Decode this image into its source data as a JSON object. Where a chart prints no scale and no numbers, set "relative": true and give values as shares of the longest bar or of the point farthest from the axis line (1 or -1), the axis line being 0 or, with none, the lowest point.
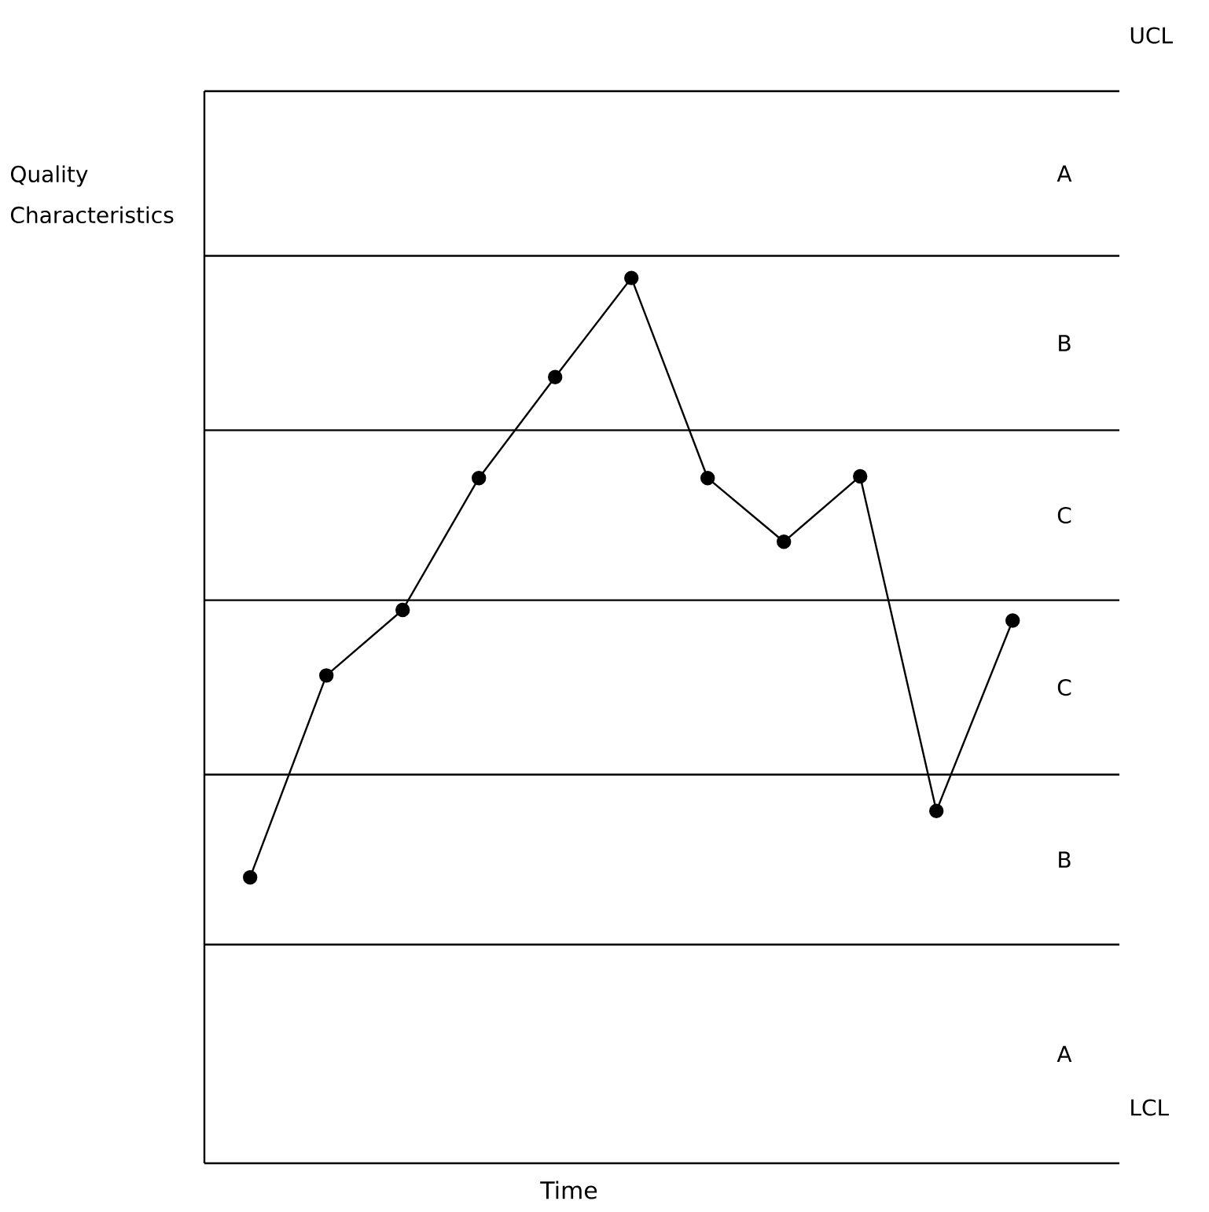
{
  "chart_data": {
    "type": "line",
    "relative": true,
    "xlabel": "Time",
    "ylabel": "Quality Characteristics",
    "categories": [
      null,
      null,
      null,
      null,
      null,
      null,
      null,
      null,
      null,
      null,
      null
    ],
    "series": [
      {
        "color": "#000000",
        "values": [
          0.323,
          0.551,
          0.625,
          0.774,
          0.888,
          1,
          0.774,
          0.702,
          0.776,
          0.398,
          0.613
        ]
      }
    ],
    "marker": "circle",
    "line_style": "solid",
    "ref_lines": [
      {
        "axis": "y",
        "value": 1.211,
        "label": "UCL"
      },
      {
        "axis": "y",
        "value": 1.025,
        "label": null
      },
      {
        "axis": "y",
        "value": 0.828,
        "label": null
      },
      {
        "axis": "y",
        "value": 0.636,
        "label": null
      },
      {
        "axis": "y",
        "value": 0.439,
        "label": null
      },
      {
        "axis": "y",
        "value": 0.247,
        "label": null
      },
      {
        "axis": "y",
        "value": 0,
        "label": "LCL"
      }
    ],
    "annotations": [
      "A",
      "B",
      "C",
      "C",
      "B",
      "A"
    ]
  }
}
